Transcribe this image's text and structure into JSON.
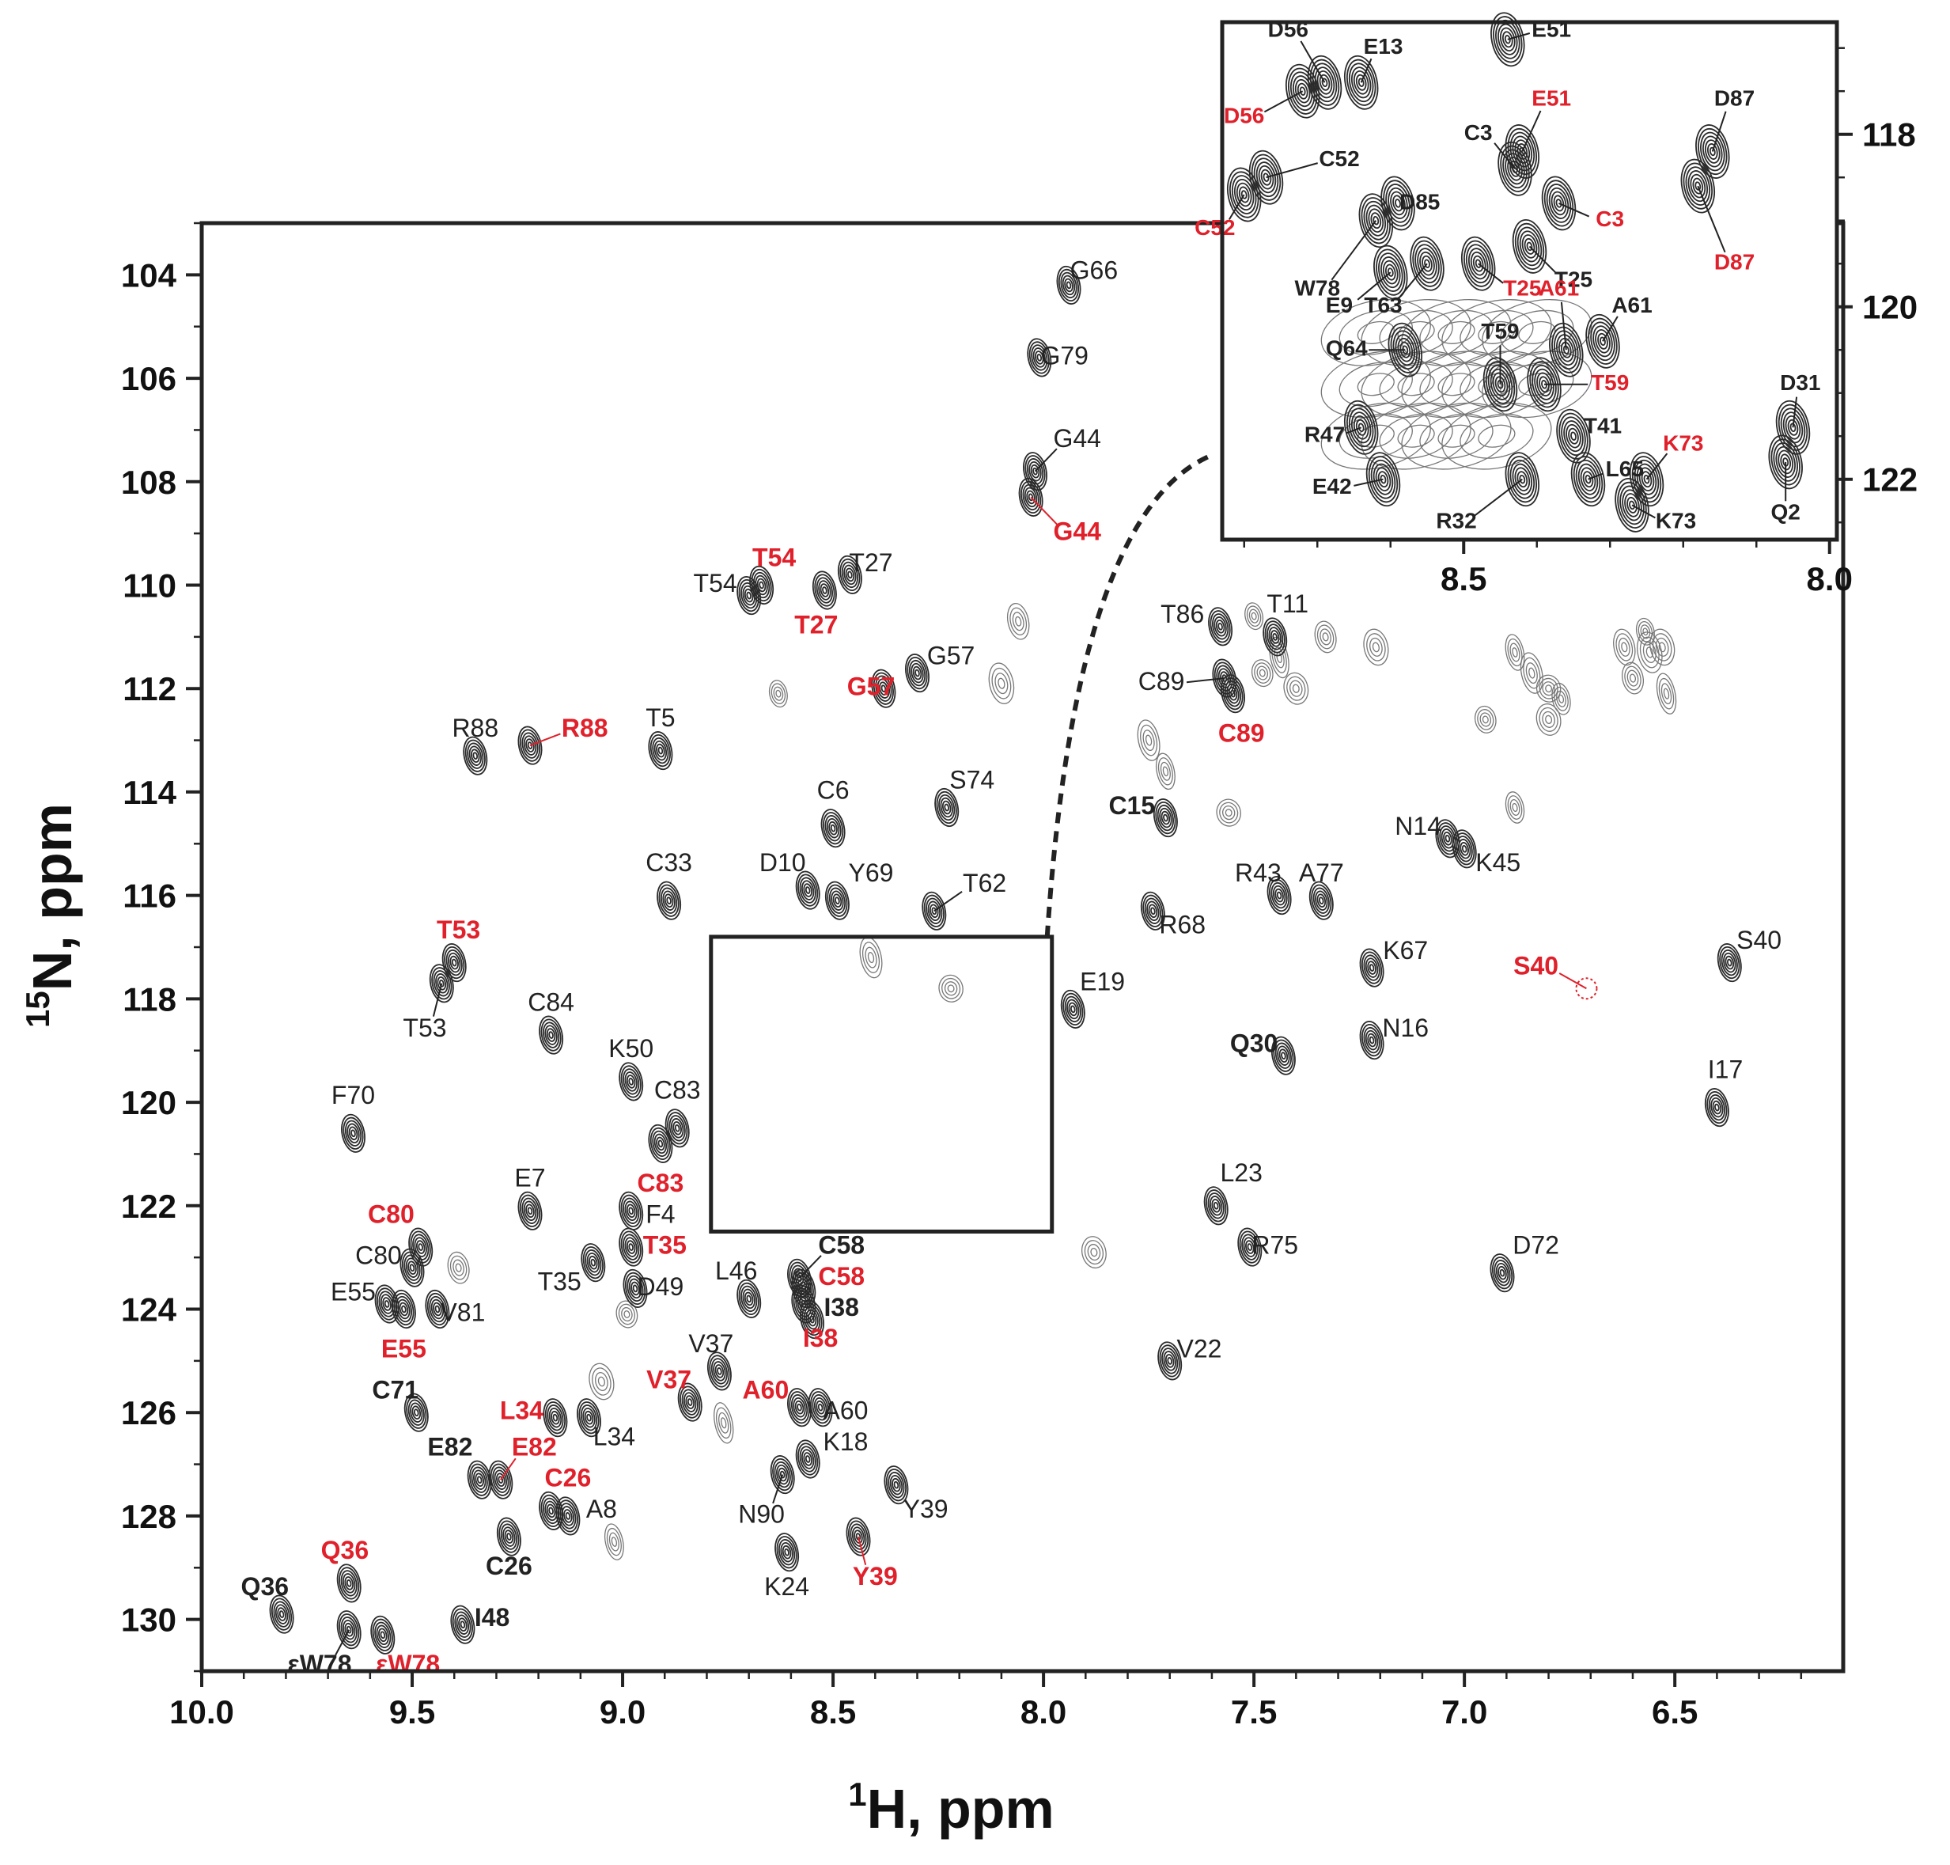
{
  "chart_data": {
    "type": "scatter",
    "subtype": "2D 1H-15N HSQC overlay",
    "xlabel_sup": "1",
    "xlabel": "H, ppm",
    "ylabel_sup": "15",
    "ylabel": "N, ppm",
    "xlim": [
      10.0,
      6.1
    ],
    "ylim": [
      103.0,
      131.0
    ],
    "x_reversed": true,
    "y_reversed": true,
    "xticks": [
      "10.0",
      "9.5",
      "9.0",
      "8.5",
      "8.0",
      "7.5",
      "7.0",
      "6.5"
    ],
    "yticks": [
      "104",
      "106",
      "108",
      "110",
      "112",
      "114",
      "116",
      "118",
      "120",
      "122",
      "124",
      "126",
      "128",
      "130"
    ],
    "colors": {
      "state_a": "#222222",
      "state_b": "#e0202a",
      "contour": "#333333"
    },
    "peaks": [
      {
        "label": "G66",
        "x": 7.94,
        "y": 104.2,
        "lx": 7.88,
        "ly": 103.95,
        "style": "black"
      },
      {
        "label": "G79",
        "x": 8.01,
        "y": 105.6,
        "lx": 7.95,
        "ly": 105.6,
        "style": "black"
      },
      {
        "label": "G44",
        "x": 8.02,
        "y": 107.8,
        "lx": 7.92,
        "ly": 107.2,
        "style": "black"
      },
      {
        "label": "G44",
        "x": 8.03,
        "y": 108.3,
        "lx": 7.92,
        "ly": 109.0,
        "style": "red"
      },
      {
        "label": "T54",
        "x": 8.67,
        "y": 110.0,
        "lx": 8.64,
        "ly": 109.5,
        "style": "red"
      },
      {
        "label": "T54",
        "x": 8.7,
        "y": 110.2,
        "lx": 8.78,
        "ly": 110.0,
        "style": "black"
      },
      {
        "label": "T27",
        "x": 8.46,
        "y": 109.8,
        "lx": 8.41,
        "ly": 109.6,
        "style": "black"
      },
      {
        "label": "T27",
        "x": 8.52,
        "y": 110.1,
        "lx": 8.54,
        "ly": 110.8,
        "style": "red"
      },
      {
        "label": "G57",
        "x": 8.3,
        "y": 111.7,
        "lx": 8.22,
        "ly": 111.4,
        "style": "black"
      },
      {
        "label": "G57",
        "x": 8.38,
        "y": 112.0,
        "lx": 8.41,
        "ly": 112.0,
        "style": "red"
      },
      {
        "label": "R88",
        "x": 9.35,
        "y": 113.3,
        "lx": 9.35,
        "ly": 112.8,
        "style": "black"
      },
      {
        "label": "R88",
        "x": 9.22,
        "y": 113.1,
        "lx": 9.09,
        "ly": 112.8,
        "style": "red"
      },
      {
        "label": "T5",
        "x": 8.91,
        "y": 113.2,
        "lx": 8.91,
        "ly": 112.6,
        "style": "black"
      },
      {
        "label": "C6",
        "x": 8.5,
        "y": 114.7,
        "lx": 8.5,
        "ly": 114.0,
        "style": "black"
      },
      {
        "label": "S74",
        "x": 8.23,
        "y": 114.3,
        "lx": 8.17,
        "ly": 113.8,
        "style": "black"
      },
      {
        "label": "C15",
        "x": 7.71,
        "y": 114.5,
        "lx": 7.79,
        "ly": 114.3,
        "style": "bold"
      },
      {
        "label": "C33",
        "x": 8.89,
        "y": 116.1,
        "lx": 8.89,
        "ly": 115.4,
        "style": "black"
      },
      {
        "label": "D10",
        "x": 8.56,
        "y": 115.9,
        "lx": 8.62,
        "ly": 115.4,
        "style": "black"
      },
      {
        "label": "Y69",
        "x": 8.49,
        "y": 116.1,
        "lx": 8.41,
        "ly": 115.6,
        "style": "black"
      },
      {
        "label": "T62",
        "x": 8.26,
        "y": 116.3,
        "lx": 8.14,
        "ly": 115.8,
        "style": "black"
      },
      {
        "label": "T53",
        "x": 9.4,
        "y": 117.3,
        "lx": 9.39,
        "ly": 116.7,
        "style": "red"
      },
      {
        "label": "T53",
        "x": 9.43,
        "y": 117.7,
        "lx": 9.47,
        "ly": 118.6,
        "style": "black"
      },
      {
        "label": "C84",
        "x": 9.17,
        "y": 118.7,
        "lx": 9.17,
        "ly": 118.1,
        "style": "black"
      },
      {
        "label": "E19",
        "x": 7.93,
        "y": 118.2,
        "lx": 7.86,
        "ly": 117.7,
        "style": "black"
      },
      {
        "label": "K50",
        "x": 8.98,
        "y": 119.6,
        "lx": 8.98,
        "ly": 119.0,
        "style": "black"
      },
      {
        "label": "C83",
        "x": 8.87,
        "y": 120.5,
        "lx": 8.87,
        "ly": 119.8,
        "style": "black"
      },
      {
        "label": "C83",
        "x": 8.91,
        "y": 120.8,
        "lx": 8.91,
        "ly": 121.6,
        "style": "red"
      },
      {
        "label": "F70",
        "x": 9.64,
        "y": 120.6,
        "lx": 9.64,
        "ly": 119.9,
        "style": "black"
      },
      {
        "label": "E7",
        "x": 9.22,
        "y": 122.1,
        "lx": 9.22,
        "ly": 121.5,
        "style": "black"
      },
      {
        "label": "F4",
        "x": 8.98,
        "y": 122.1,
        "lx": 8.91,
        "ly": 122.2,
        "style": "black"
      },
      {
        "label": "T35",
        "x": 8.98,
        "y": 122.8,
        "lx": 8.9,
        "ly": 122.8,
        "style": "red"
      },
      {
        "label": "T35",
        "x": 9.07,
        "y": 123.1,
        "lx": 9.15,
        "ly": 123.5,
        "style": "black"
      },
      {
        "label": "C80",
        "x": 9.48,
        "y": 122.8,
        "lx": 9.55,
        "ly": 122.2,
        "style": "red"
      },
      {
        "label": "C80",
        "x": 9.5,
        "y": 123.2,
        "lx": 9.58,
        "ly": 123.0,
        "style": "black"
      },
      {
        "label": "E55",
        "x": 9.56,
        "y": 123.9,
        "lx": 9.64,
        "ly": 123.7,
        "style": "black"
      },
      {
        "label": "E55",
        "x": 9.52,
        "y": 124.0,
        "lx": 9.52,
        "ly": 124.8,
        "style": "red"
      },
      {
        "label": "V81",
        "x": 9.44,
        "y": 124.0,
        "lx": 9.38,
        "ly": 124.1,
        "style": "black"
      },
      {
        "label": "D49",
        "x": 8.97,
        "y": 123.6,
        "lx": 8.91,
        "ly": 123.6,
        "style": "black"
      },
      {
        "label": "L46",
        "x": 8.7,
        "y": 123.8,
        "lx": 8.73,
        "ly": 123.3,
        "style": "black"
      },
      {
        "label": "C58",
        "x": 8.58,
        "y": 123.4,
        "lx": 8.48,
        "ly": 122.8,
        "style": "bold"
      },
      {
        "label": "C58",
        "x": 8.57,
        "y": 123.6,
        "lx": 8.48,
        "ly": 123.4,
        "style": "red"
      },
      {
        "label": "I38",
        "x": 8.57,
        "y": 123.9,
        "lx": 8.48,
        "ly": 124.0,
        "style": "bold"
      },
      {
        "label": "I38",
        "x": 8.55,
        "y": 124.2,
        "lx": 8.53,
        "ly": 124.6,
        "style": "red"
      },
      {
        "label": "V37",
        "x": 8.77,
        "y": 125.2,
        "lx": 8.79,
        "ly": 124.7,
        "style": "black"
      },
      {
        "label": "V37",
        "x": 8.84,
        "y": 125.8,
        "lx": 8.89,
        "ly": 125.4,
        "style": "red"
      },
      {
        "label": "A60",
        "x": 8.58,
        "y": 125.9,
        "lx": 8.66,
        "ly": 125.6,
        "style": "red"
      },
      {
        "label": "A60",
        "x": 8.53,
        "y": 125.9,
        "lx": 8.47,
        "ly": 126.0,
        "style": "black"
      },
      {
        "label": "C71",
        "x": 9.49,
        "y": 126.0,
        "lx": 9.54,
        "ly": 125.6,
        "style": "bold"
      },
      {
        "label": "L34",
        "x": 9.16,
        "y": 126.1,
        "lx": 9.24,
        "ly": 126.0,
        "style": "red"
      },
      {
        "label": "L34",
        "x": 9.08,
        "y": 126.1,
        "lx": 9.02,
        "ly": 126.5,
        "style": "black"
      },
      {
        "label": "E82",
        "x": 9.34,
        "y": 127.3,
        "lx": 9.41,
        "ly": 126.7,
        "style": "bold"
      },
      {
        "label": "E82",
        "x": 9.29,
        "y": 127.3,
        "lx": 9.21,
        "ly": 126.7,
        "style": "red"
      },
      {
        "label": "K18",
        "x": 8.56,
        "y": 126.9,
        "lx": 8.47,
        "ly": 126.6,
        "style": "black"
      },
      {
        "label": "N90",
        "x": 8.62,
        "y": 127.2,
        "lx": 8.67,
        "ly": 128.0,
        "style": "black"
      },
      {
        "label": "C26",
        "x": 9.17,
        "y": 127.9,
        "lx": 9.13,
        "ly": 127.3,
        "style": "red"
      },
      {
        "label": "A8",
        "x": 9.13,
        "y": 128.0,
        "lx": 9.05,
        "ly": 127.9,
        "style": "black"
      },
      {
        "label": "C26",
        "x": 9.27,
        "y": 128.4,
        "lx": 9.27,
        "ly": 129.0,
        "style": "bold"
      },
      {
        "label": "Y39",
        "x": 8.35,
        "y": 127.4,
        "lx": 8.28,
        "ly": 127.9,
        "style": "black"
      },
      {
        "label": "Y39",
        "x": 8.44,
        "y": 128.4,
        "lx": 8.4,
        "ly": 129.2,
        "style": "red"
      },
      {
        "label": "K24",
        "x": 8.61,
        "y": 128.7,
        "lx": 8.61,
        "ly": 129.4,
        "style": "black"
      },
      {
        "label": "Q36",
        "x": 9.65,
        "y": 129.3,
        "lx": 9.66,
        "ly": 128.7,
        "style": "red"
      },
      {
        "label": "Q36",
        "x": 9.81,
        "y": 129.9,
        "lx": 9.85,
        "ly": 129.4,
        "style": "bold"
      },
      {
        "label": "εW78",
        "x": 9.65,
        "y": 130.2,
        "lx": 9.72,
        "ly": 130.9,
        "style": "bold"
      },
      {
        "label": "εW78",
        "x": 9.57,
        "y": 130.3,
        "lx": 9.51,
        "ly": 130.9,
        "style": "red"
      },
      {
        "label": "I48",
        "x": 9.38,
        "y": 130.1,
        "lx": 9.31,
        "ly": 130.0,
        "style": "bold"
      },
      {
        "label": "T86",
        "x": 7.58,
        "y": 110.8,
        "lx": 7.67,
        "ly": 110.6,
        "style": "black"
      },
      {
        "label": "T11",
        "x": 7.45,
        "y": 111.0,
        "lx": 7.42,
        "ly": 110.4,
        "style": "black"
      },
      {
        "label": "C89",
        "x": 7.57,
        "y": 111.8,
        "lx": 7.72,
        "ly": 111.9,
        "style": "black"
      },
      {
        "label": "C89",
        "x": 7.55,
        "y": 112.1,
        "lx": 7.53,
        "ly": 112.9,
        "style": "red"
      },
      {
        "label": "N14",
        "x": 7.04,
        "y": 114.9,
        "lx": 7.11,
        "ly": 114.7,
        "style": "black"
      },
      {
        "label": "K45",
        "x": 7.0,
        "y": 115.1,
        "lx": 6.92,
        "ly": 115.4,
        "style": "black"
      },
      {
        "label": "R43",
        "x": 7.44,
        "y": 116.0,
        "lx": 7.49,
        "ly": 115.6,
        "style": "black"
      },
      {
        "label": "A77",
        "x": 7.34,
        "y": 116.1,
        "lx": 7.34,
        "ly": 115.6,
        "style": "black"
      },
      {
        "label": "R68",
        "x": 7.74,
        "y": 116.3,
        "lx": 7.67,
        "ly": 116.6,
        "style": "black"
      },
      {
        "label": "K67",
        "x": 7.22,
        "y": 117.4,
        "lx": 7.14,
        "ly": 117.1,
        "style": "black"
      },
      {
        "label": "S40",
        "x": 6.71,
        "y": 117.8,
        "lx": 6.83,
        "ly": 117.4,
        "style": "red"
      },
      {
        "label": "S40",
        "x": 6.37,
        "y": 117.3,
        "lx": 6.3,
        "ly": 116.9,
        "style": "black"
      },
      {
        "label": "N16",
        "x": 7.22,
        "y": 118.8,
        "lx": 7.14,
        "ly": 118.6,
        "style": "black"
      },
      {
        "label": "Q30",
        "x": 7.43,
        "y": 119.1,
        "lx": 7.5,
        "ly": 118.9,
        "style": "bold"
      },
      {
        "label": "I17",
        "x": 6.4,
        "y": 120.1,
        "lx": 6.38,
        "ly": 119.4,
        "style": "black"
      },
      {
        "label": "L23",
        "x": 7.59,
        "y": 122.0,
        "lx": 7.53,
        "ly": 121.4,
        "style": "black"
      },
      {
        "label": "R75",
        "x": 7.51,
        "y": 122.8,
        "lx": 7.45,
        "ly": 122.8,
        "style": "black"
      },
      {
        "label": "D72",
        "x": 6.91,
        "y": 123.3,
        "lx": 6.83,
        "ly": 122.8,
        "style": "black"
      },
      {
        "label": "V22",
        "x": 7.7,
        "y": 125.0,
        "lx": 7.63,
        "ly": 124.8,
        "style": "black"
      }
    ],
    "unlabeled_peaks": [
      [
        7.5,
        110.6
      ],
      [
        7.33,
        111.0
      ],
      [
        7.21,
        111.2
      ],
      [
        7.44,
        111.4
      ],
      [
        7.48,
        111.7
      ],
      [
        7.4,
        112.0
      ],
      [
        6.88,
        111.3
      ],
      [
        6.84,
        111.7
      ],
      [
        6.8,
        112.0
      ],
      [
        6.77,
        112.2
      ],
      [
        6.62,
        111.2
      ],
      [
        6.56,
        111.3
      ],
      [
        6.57,
        110.9
      ],
      [
        6.6,
        111.8
      ],
      [
        6.53,
        111.2
      ],
      [
        6.52,
        112.1
      ],
      [
        6.95,
        112.6
      ],
      [
        6.8,
        112.6
      ],
      [
        7.71,
        113.6
      ],
      [
        7.75,
        113.0
      ],
      [
        7.56,
        114.4
      ],
      [
        6.88,
        114.3
      ],
      [
        8.06,
        110.7
      ],
      [
        8.1,
        111.9
      ],
      [
        8.63,
        112.1
      ],
      [
        9.39,
        123.2
      ],
      [
        9.05,
        125.4
      ],
      [
        8.76,
        126.2
      ],
      [
        8.99,
        124.1
      ],
      [
        7.88,
        122.9
      ],
      [
        9.02,
        128.5
      ],
      [
        8.41,
        117.2
      ],
      [
        8.22,
        117.8
      ]
    ],
    "boxed_region": {
      "x": [
        8.79,
        7.98
      ],
      "y": [
        116.8,
        122.5
      ]
    },
    "inset": {
      "xlim": [
        8.83,
        7.99
      ],
      "ylim": [
        116.7,
        122.7
      ],
      "xticks": [
        "8.5",
        "8.0"
      ],
      "yticks": [
        "118",
        "120",
        "122"
      ],
      "peaks": [
        {
          "label": "D56",
          "x": 8.69,
          "y": 117.4,
          "lx": 8.74,
          "ly": 116.8,
          "style": "black"
        },
        {
          "label": "E13",
          "x": 8.64,
          "y": 117.4,
          "lx": 8.61,
          "ly": 117.0,
          "style": "black"
        },
        {
          "label": "D56",
          "x": 8.72,
          "y": 117.5,
          "lx": 8.8,
          "ly": 117.8,
          "style": "red"
        },
        {
          "label": "E51",
          "x": 8.44,
          "y": 116.9,
          "lx": 8.38,
          "ly": 116.8,
          "style": "black"
        },
        {
          "label": "E51",
          "x": 8.42,
          "y": 118.2,
          "lx": 8.38,
          "ly": 117.6,
          "style": "red"
        },
        {
          "label": "C3",
          "x": 8.43,
          "y": 118.4,
          "lx": 8.48,
          "ly": 118.0,
          "style": "black"
        },
        {
          "label": "C52",
          "x": 8.77,
          "y": 118.5,
          "lx": 8.67,
          "ly": 118.3,
          "style": "black"
        },
        {
          "label": "C52",
          "x": 8.8,
          "y": 118.7,
          "lx": 8.84,
          "ly": 119.1,
          "style": "red"
        },
        {
          "label": "D85",
          "x": 8.59,
          "y": 118.8,
          "lx": 8.56,
          "ly": 118.8,
          "style": "black"
        },
        {
          "label": "C3",
          "x": 8.37,
          "y": 118.8,
          "lx": 8.3,
          "ly": 119.0,
          "style": "red"
        },
        {
          "label": "W78",
          "x": 8.62,
          "y": 119.0,
          "lx": 8.7,
          "ly": 119.8,
          "style": "black"
        },
        {
          "label": "T25",
          "x": 8.41,
          "y": 119.3,
          "lx": 8.35,
          "ly": 119.7,
          "style": "black"
        },
        {
          "label": "E9",
          "x": 8.6,
          "y": 119.6,
          "lx": 8.67,
          "ly": 120.0,
          "style": "black"
        },
        {
          "label": "T63",
          "x": 8.55,
          "y": 119.5,
          "lx": 8.61,
          "ly": 120.0,
          "style": "black"
        },
        {
          "label": "T25",
          "x": 8.48,
          "y": 119.5,
          "lx": 8.42,
          "ly": 119.8,
          "style": "red"
        },
        {
          "label": "A61",
          "x": 8.36,
          "y": 120.5,
          "lx": 8.37,
          "ly": 119.8,
          "style": "red"
        },
        {
          "label": "A61",
          "x": 8.31,
          "y": 120.4,
          "lx": 8.27,
          "ly": 120.0,
          "style": "black"
        },
        {
          "label": "T59",
          "x": 8.45,
          "y": 120.9,
          "lx": 8.45,
          "ly": 120.3,
          "style": "black"
        },
        {
          "label": "Q64",
          "x": 8.58,
          "y": 120.5,
          "lx": 8.66,
          "ly": 120.5,
          "style": "black"
        },
        {
          "label": "T59",
          "x": 8.39,
          "y": 120.9,
          "lx": 8.3,
          "ly": 120.9,
          "style": "red"
        },
        {
          "label": "R47",
          "x": 8.64,
          "y": 121.4,
          "lx": 8.69,
          "ly": 121.5,
          "style": "black"
        },
        {
          "label": "T41",
          "x": 8.35,
          "y": 121.5,
          "lx": 8.31,
          "ly": 121.4,
          "style": "black"
        },
        {
          "label": "E42",
          "x": 8.61,
          "y": 122.0,
          "lx": 8.68,
          "ly": 122.1,
          "style": "black"
        },
        {
          "label": "L65",
          "x": 8.33,
          "y": 122.0,
          "lx": 8.28,
          "ly": 121.9,
          "style": "black"
        },
        {
          "label": "K73",
          "x": 8.25,
          "y": 122.0,
          "lx": 8.2,
          "ly": 121.6,
          "style": "red"
        },
        {
          "label": "R32",
          "x": 8.42,
          "y": 122.0,
          "lx": 8.51,
          "ly": 122.5,
          "style": "black"
        },
        {
          "label": "K73",
          "x": 8.27,
          "y": 122.3,
          "lx": 8.21,
          "ly": 122.5,
          "style": "black"
        },
        {
          "label": "D87",
          "x": 8.16,
          "y": 118.2,
          "lx": 8.13,
          "ly": 117.6,
          "style": "black"
        },
        {
          "label": "D87",
          "x": 8.18,
          "y": 118.6,
          "lx": 8.13,
          "ly": 119.5,
          "style": "red"
        },
        {
          "label": "D31",
          "x": 8.05,
          "y": 121.4,
          "lx": 8.04,
          "ly": 120.9,
          "style": "black"
        },
        {
          "label": "Q2",
          "x": 8.06,
          "y": 121.8,
          "lx": 8.06,
          "ly": 122.4,
          "style": "black"
        }
      ]
    }
  }
}
